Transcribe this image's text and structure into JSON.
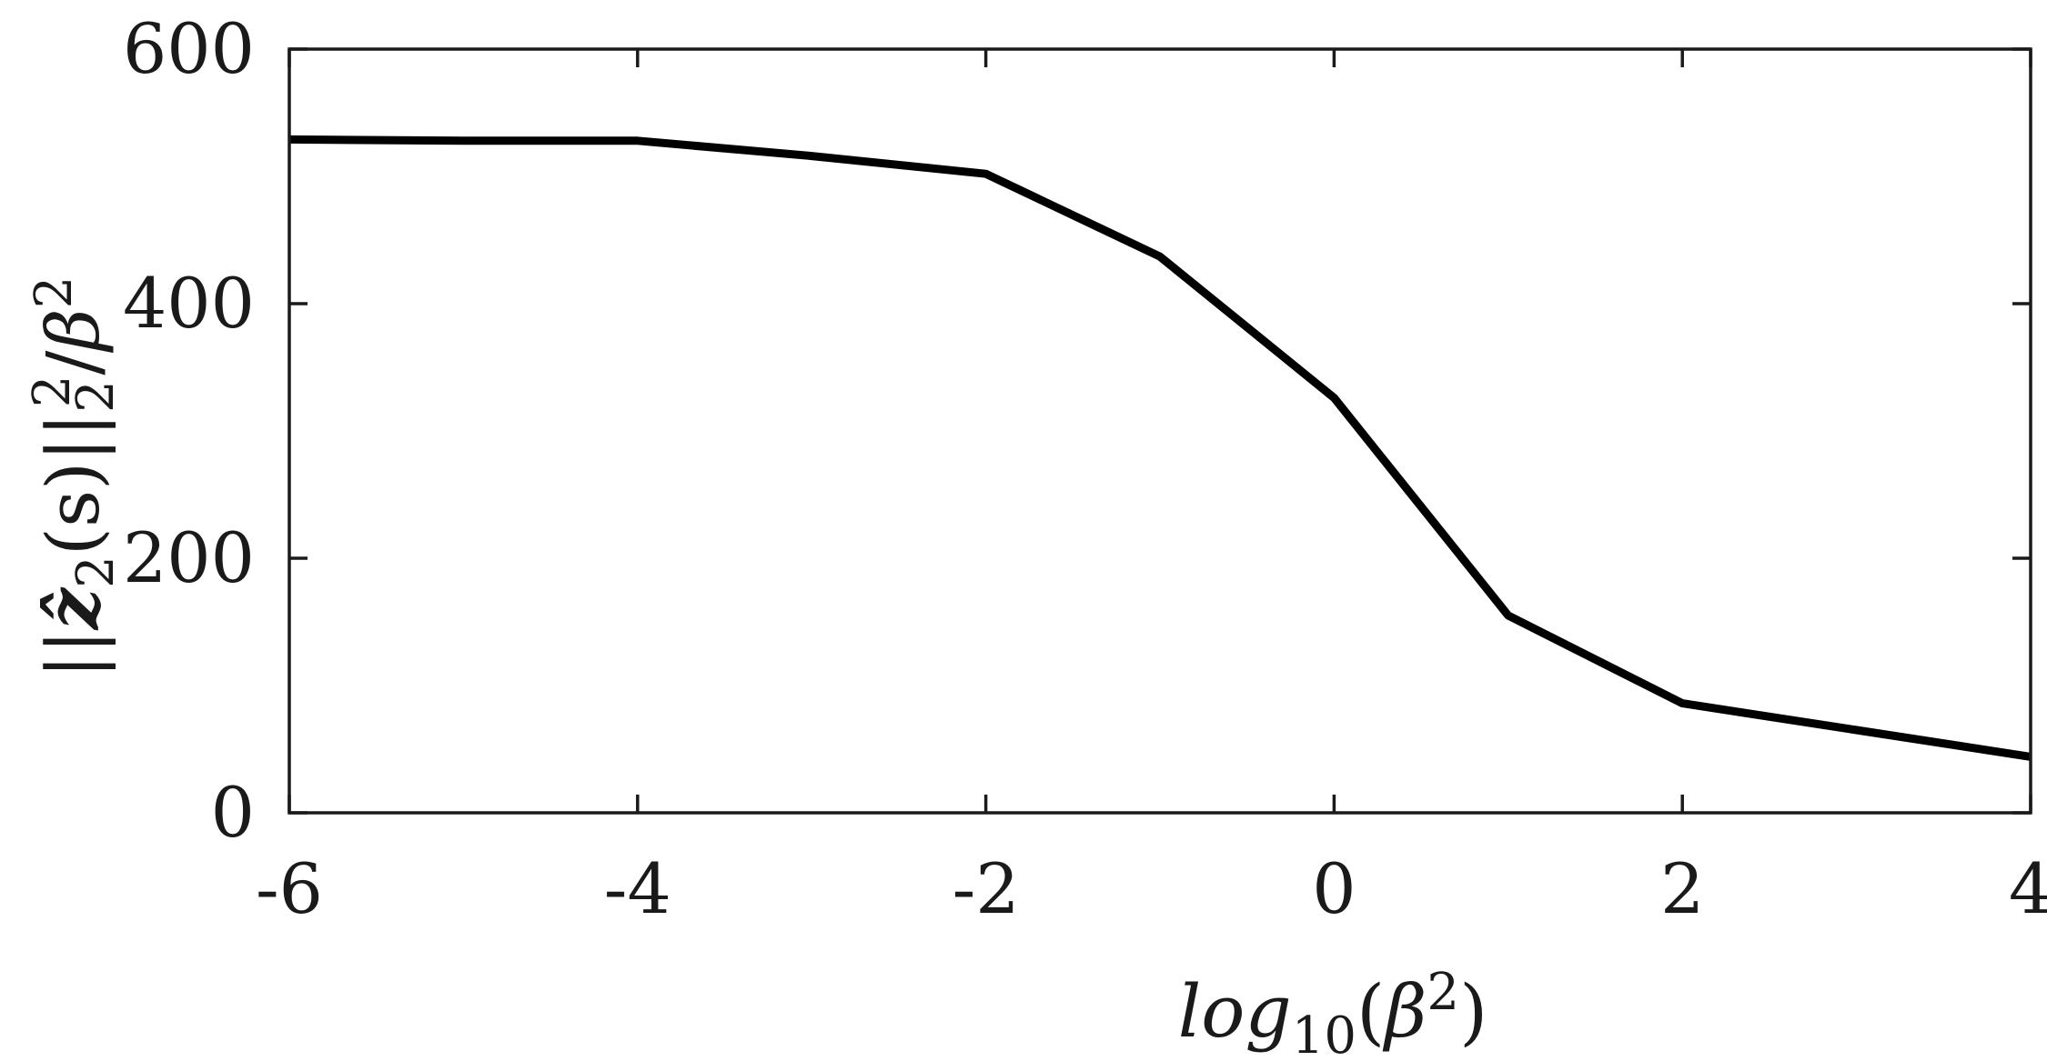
{
  "chart_data": {
    "type": "line",
    "title": "",
    "xlabel": {
      "base": "log",
      "subscript": "10",
      "open": "(",
      "symbol": "β",
      "superscript": "2",
      "close": ")"
    },
    "ylabel": {
      "open_norm": "||",
      "symbol": "ẑ",
      "symbol_sub": "2",
      "arg": "(s)",
      "close_norm": "||",
      "norm_sub": "2",
      "norm_sup": "2",
      "slash": "/",
      "divisor": "β",
      "divisor_sup": "2"
    },
    "xlim": [
      -6,
      4
    ],
    "ylim": [
      0,
      600
    ],
    "xticks": [
      -6,
      -4,
      -2,
      0,
      2,
      4
    ],
    "xtick_labels": [
      "-6",
      "-4",
      "-2",
      "0",
      "2",
      "4"
    ],
    "yticks": [
      0,
      200,
      400,
      600
    ],
    "ytick_labels": [
      "0",
      "200",
      "400",
      "600"
    ],
    "grid": false,
    "series": [
      {
        "x": [
          -6,
          -5,
          -4,
          -3,
          -2,
          -1,
          0,
          1,
          2,
          3,
          4
        ],
        "values": [
          529,
          528,
          528,
          516,
          502,
          437,
          326,
          155,
          86,
          65,
          44
        ]
      }
    ],
    "colors": {
      "line": "#000000",
      "axes": "#1a1a1a"
    }
  }
}
